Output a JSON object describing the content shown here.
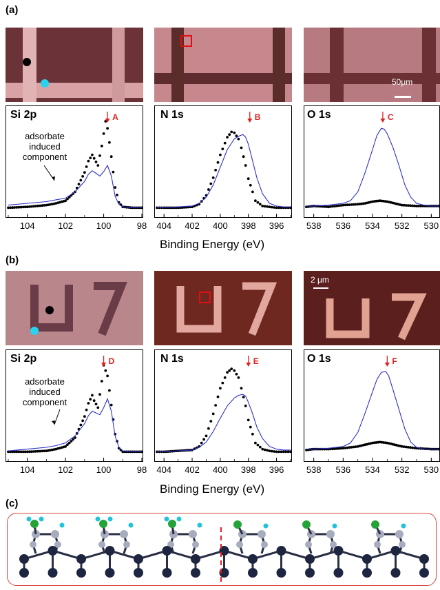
{
  "panels": {
    "a": {
      "label": "(a)"
    },
    "b": {
      "label": "(b)"
    },
    "c": {
      "label": "(c)"
    }
  },
  "scalebars": {
    "a": "50μm",
    "b": "2 μm"
  },
  "xaxis_label": "Binding Energy (eV)",
  "annotation_text": {
    "adsorbate_line1": "adsorbate",
    "adsorbate_line2": "induced",
    "adsorbate_line3": "component"
  },
  "colors": {
    "spectrum_line": "#2b2fc9",
    "dots": "#000000",
    "marker_arrow": "#e02020",
    "black_spot": "#000000",
    "cyan_spot": "#29d3f0"
  },
  "chart_data": [
    {
      "type": "line",
      "panel": "a",
      "title": "Si 2p",
      "x_ticks": [
        104,
        102,
        100,
        98
      ],
      "xlim": [
        105,
        98
      ],
      "reversed_x": true,
      "marker": {
        "label": "A",
        "x": 99.8
      },
      "series": [
        {
          "style": "dots",
          "x": [
            105,
            104,
            103,
            102.5,
            102,
            101.5,
            101,
            100.8,
            100.6,
            100.5,
            100.3,
            100.1,
            99.9,
            99.8,
            99.6,
            99.4,
            99.2,
            99,
            98.5,
            98
          ],
          "y": [
            0.02,
            0.03,
            0.05,
            0.07,
            0.1,
            0.2,
            0.42,
            0.55,
            0.62,
            0.58,
            0.5,
            0.72,
            1.0,
            0.92,
            0.6,
            0.25,
            0.08,
            0.03,
            0.02,
            0.02
          ]
        },
        {
          "style": "line",
          "x": [
            105,
            104,
            103,
            102.5,
            102,
            101.5,
            101,
            100.8,
            100.6,
            100.4,
            100.2,
            100,
            99.8,
            99.6,
            99.4,
            99.2,
            99,
            98.5,
            98
          ],
          "y": [
            0.05,
            0.07,
            0.09,
            0.11,
            0.13,
            0.2,
            0.32,
            0.4,
            0.44,
            0.41,
            0.38,
            0.43,
            0.5,
            0.38,
            0.15,
            0.06,
            0.03,
            0.02,
            0.02
          ]
        }
      ]
    },
    {
      "type": "line",
      "panel": "a",
      "title": "N 1s",
      "x_ticks": [
        404,
        402,
        400,
        398,
        396
      ],
      "xlim": [
        404.5,
        395
      ],
      "reversed_x": true,
      "marker": {
        "label": "B",
        "x": 397.9
      },
      "series": [
        {
          "style": "dots",
          "x": [
            404.5,
            404,
            403,
            402,
            401.5,
            401,
            400.5,
            400,
            399.5,
            399.2,
            399,
            398.7,
            398.5,
            398.2,
            398,
            397.7,
            397.5,
            397,
            396.5,
            396,
            395.5,
            395
          ],
          "y": [
            0.02,
            0.02,
            0.02,
            0.03,
            0.06,
            0.16,
            0.36,
            0.62,
            0.82,
            0.88,
            0.87,
            0.8,
            0.7,
            0.5,
            0.35,
            0.2,
            0.1,
            0.04,
            0.03,
            0.02,
            0.02,
            0.02
          ]
        },
        {
          "style": "line",
          "x": [
            404.5,
            404,
            403,
            402,
            401.5,
            401,
            400.5,
            400,
            399.5,
            399,
            398.7,
            398.4,
            398.2,
            398,
            397.7,
            397.4,
            397,
            396.5,
            396,
            395.5,
            395
          ],
          "y": [
            0.02,
            0.02,
            0.03,
            0.04,
            0.07,
            0.14,
            0.28,
            0.48,
            0.68,
            0.8,
            0.83,
            0.85,
            0.82,
            0.74,
            0.55,
            0.36,
            0.18,
            0.07,
            0.04,
            0.03,
            0.03
          ]
        }
      ]
    },
    {
      "type": "line",
      "panel": "a",
      "title": "O 1s",
      "x_ticks": [
        538,
        536,
        534,
        532,
        530
      ],
      "xlim": [
        538.5,
        529.5
      ],
      "reversed_x": true,
      "marker": {
        "label": "C",
        "x": 533.3
      },
      "series": [
        {
          "style": "dots",
          "x": [
            538.5,
            538,
            537,
            536,
            535,
            534.5,
            534,
            533.5,
            533,
            532.5,
            532,
            531,
            530,
            529.5
          ],
          "y": [
            0.03,
            0.04,
            0.03,
            0.05,
            0.06,
            0.07,
            0.09,
            0.1,
            0.09,
            0.07,
            0.05,
            0.04,
            0.04,
            0.04
          ]
        },
        {
          "style": "line",
          "x": [
            538.5,
            538,
            537,
            536,
            535.5,
            535,
            534.5,
            534,
            533.7,
            533.4,
            533.2,
            533,
            532.6,
            532.2,
            531.8,
            531.4,
            531,
            530.5,
            530,
            529.5
          ],
          "y": [
            0.04,
            0.04,
            0.05,
            0.07,
            0.1,
            0.2,
            0.42,
            0.68,
            0.84,
            0.92,
            0.91,
            0.86,
            0.7,
            0.5,
            0.28,
            0.14,
            0.07,
            0.05,
            0.04,
            0.04
          ]
        }
      ]
    },
    {
      "type": "line",
      "panel": "b",
      "title": "Si 2p",
      "x_ticks": [
        104,
        102,
        100,
        98
      ],
      "xlim": [
        105,
        98
      ],
      "reversed_x": true,
      "marker": {
        "label": "D",
        "x": 100.0
      },
      "series": [
        {
          "style": "dots",
          "x": [
            105,
            104,
            103,
            102.5,
            102,
            101.5,
            101,
            100.8,
            100.6,
            100.5,
            100.3,
            100.1,
            100,
            99.8,
            99.6,
            99.4,
            99.2,
            99,
            98.5,
            98
          ],
          "y": [
            0.02,
            0.02,
            0.03,
            0.05,
            0.08,
            0.18,
            0.42,
            0.57,
            0.66,
            0.6,
            0.52,
            0.82,
            1.0,
            0.88,
            0.55,
            0.22,
            0.06,
            0.02,
            0.02,
            0.02
          ]
        },
        {
          "style": "line",
          "x": [
            105,
            104,
            103,
            102.5,
            102,
            101.5,
            101,
            100.8,
            100.6,
            100.4,
            100.2,
            100,
            99.8,
            99.6,
            99.4,
            99.2,
            99,
            98.5,
            98
          ],
          "y": [
            0.03,
            0.05,
            0.07,
            0.09,
            0.12,
            0.2,
            0.34,
            0.43,
            0.48,
            0.46,
            0.44,
            0.52,
            0.62,
            0.48,
            0.2,
            0.07,
            0.03,
            0.02,
            0.02
          ]
        }
      ]
    },
    {
      "type": "line",
      "panel": "b",
      "title": "N 1s",
      "x_ticks": [
        404,
        402,
        400,
        398,
        396
      ],
      "xlim": [
        404.5,
        395
      ],
      "reversed_x": true,
      "marker": {
        "label": "E",
        "x": 398.0
      },
      "series": [
        {
          "style": "dots",
          "x": [
            404.5,
            404,
            403,
            402,
            401.5,
            401,
            400.5,
            400,
            399.5,
            399.2,
            399,
            398.7,
            398.5,
            398.2,
            398,
            397.7,
            397.5,
            397,
            396.5,
            396,
            395.5,
            395
          ],
          "y": [
            0.02,
            0.02,
            0.03,
            0.04,
            0.08,
            0.2,
            0.45,
            0.74,
            0.92,
            0.96,
            0.94,
            0.86,
            0.74,
            0.54,
            0.38,
            0.22,
            0.12,
            0.05,
            0.03,
            0.02,
            0.02,
            0.02
          ]
        },
        {
          "style": "line",
          "x": [
            404.5,
            404,
            403,
            402,
            401.5,
            401,
            400.5,
            400,
            399.5,
            399,
            398.7,
            398.4,
            398.2,
            398,
            397.7,
            397.4,
            397,
            396.5,
            396,
            395.5,
            395
          ],
          "y": [
            0.02,
            0.02,
            0.03,
            0.04,
            0.07,
            0.13,
            0.25,
            0.4,
            0.54,
            0.63,
            0.66,
            0.67,
            0.65,
            0.58,
            0.45,
            0.3,
            0.17,
            0.08,
            0.05,
            0.04,
            0.04
          ]
        }
      ]
    },
    {
      "type": "line",
      "panel": "b",
      "title": "O 1s",
      "x_ticks": [
        538,
        536,
        534,
        532,
        530
      ],
      "xlim": [
        538.5,
        529.5
      ],
      "reversed_x": true,
      "marker": {
        "label": "F",
        "x": 533.0
      },
      "series": [
        {
          "style": "dots",
          "x": [
            538.5,
            538,
            537,
            536,
            535,
            534.5,
            534,
            533.5,
            533,
            532.5,
            532,
            531,
            530,
            529.5
          ],
          "y": [
            0.04,
            0.05,
            0.05,
            0.06,
            0.08,
            0.1,
            0.12,
            0.13,
            0.12,
            0.1,
            0.08,
            0.06,
            0.05,
            0.05
          ]
        },
        {
          "style": "line",
          "x": [
            538.5,
            538,
            537,
            536,
            535.5,
            535,
            534.5,
            534,
            533.7,
            533.4,
            533.1,
            532.9,
            532.6,
            532.2,
            531.8,
            531.4,
            531,
            530.5,
            530,
            529.5
          ],
          "y": [
            0.05,
            0.05,
            0.06,
            0.08,
            0.12,
            0.24,
            0.46,
            0.7,
            0.84,
            0.92,
            0.93,
            0.88,
            0.72,
            0.5,
            0.28,
            0.13,
            0.07,
            0.05,
            0.05,
            0.05
          ]
        }
      ]
    }
  ]
}
